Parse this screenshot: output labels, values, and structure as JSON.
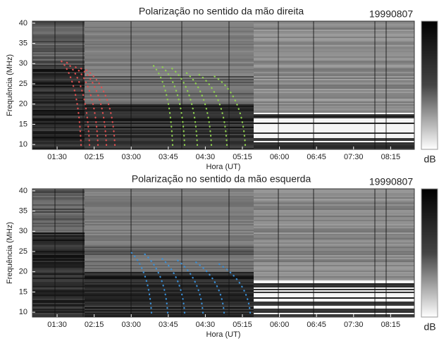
{
  "chart_data": [
    {
      "type": "spectrogram",
      "title": "Polarização no sentido da mão direita",
      "annotation": "19990807",
      "xlabel": "Hora (UT)",
      "ylabel": "Frequência (MHz)",
      "colorbar_label": "dB",
      "xlim": [
        1.0,
        8.73
      ],
      "xticks": [
        {
          "value": 1.5,
          "label": "01:30"
        },
        {
          "value": 2.25,
          "label": "02:15"
        },
        {
          "value": 3,
          "label": "03:00"
        },
        {
          "value": 3.75,
          "label": "03:45"
        },
        {
          "value": 4.5,
          "label": "04:30"
        },
        {
          "value": 5.25,
          "label": "05:15"
        },
        {
          "value": 6,
          "label": "06:00"
        },
        {
          "value": 6.75,
          "label": "06:45"
        },
        {
          "value": 7.5,
          "label": "07:30"
        },
        {
          "value": 8.25,
          "label": "08:15"
        }
      ],
      "ylim": [
        8.8,
        40.5
      ],
      "yticks": [
        10,
        15,
        20,
        25,
        30,
        35,
        40
      ]
    },
    {
      "type": "spectrogram",
      "title": "Polarização no sentido da mão esquerda",
      "annotation": "19990807",
      "xlabel": "Hora (UT)",
      "ylabel": "Frequência (MHz)",
      "colorbar_label": "dB",
      "xlim": [
        1.0,
        8.73
      ],
      "xticks": [
        {
          "value": 1.5,
          "label": "01:30"
        },
        {
          "value": 2.25,
          "label": "02:15"
        },
        {
          "value": 3,
          "label": "03:00"
        },
        {
          "value": 3.75,
          "label": "03:45"
        },
        {
          "value": 4.5,
          "label": "04:30"
        },
        {
          "value": 5.25,
          "label": "05:15"
        },
        {
          "value": 6,
          "label": "06:00"
        },
        {
          "value": 6.75,
          "label": "06:45"
        },
        {
          "value": 7.5,
          "label": "07:30"
        },
        {
          "value": 8.25,
          "label": "08:15"
        }
      ],
      "ylim": [
        8.8,
        40.5
      ],
      "yticks": [
        10,
        15,
        20,
        25,
        30,
        35,
        40
      ]
    }
  ]
}
